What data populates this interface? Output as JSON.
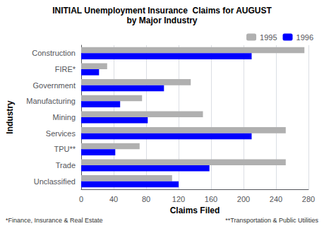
{
  "chart_data": {
    "type": "bar",
    "orientation": "horizontal",
    "title": "INITIAL Unemployment Insurance  Claims for AUGUST",
    "subtitle": "by Major Industry",
    "xlabel": "Claims Filed",
    "ylabel": "Industry",
    "categories": [
      "Construction",
      "FIRE*",
      "Government",
      "Manufacturing",
      "Mining",
      "Services",
      "TPU**",
      "Trade",
      "Unclassified"
    ],
    "series": [
      {
        "name": "1995",
        "color": "#b0b0b0",
        "values": [
          275,
          32,
          135,
          75,
          150,
          252,
          72,
          252,
          112
        ]
      },
      {
        "name": "1996",
        "color": "#0000ff",
        "values": [
          210,
          22,
          102,
          48,
          82,
          210,
          42,
          158,
          120
        ]
      }
    ],
    "xlim": [
      0,
      280
    ],
    "xticks": [
      0,
      40,
      80,
      120,
      160,
      200,
      240,
      280
    ],
    "grid": true,
    "legend": "upper right",
    "annotations": [
      "*Finance, Insurance & Real Estate",
      "**Transportation & Public Utilities"
    ]
  }
}
